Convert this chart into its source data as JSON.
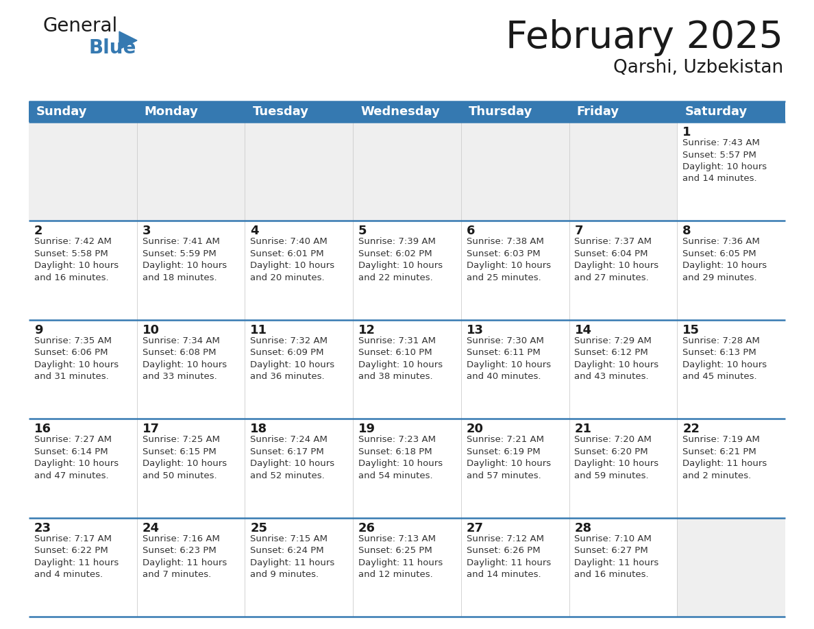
{
  "title": "February 2025",
  "subtitle": "Qarshi, Uzbekistan",
  "header_bg_color": "#3579B1",
  "header_text_color": "#FFFFFF",
  "empty_cell_bg": "#EFEFEF",
  "white_bg": "#FFFFFF",
  "border_color": "#3579B1",
  "text_color": "#1a1a1a",
  "info_color": "#333333",
  "day_names": [
    "Sunday",
    "Monday",
    "Tuesday",
    "Wednesday",
    "Thursday",
    "Friday",
    "Saturday"
  ],
  "title_fontsize": 40,
  "subtitle_fontsize": 19,
  "header_fontsize": 13,
  "day_num_fontsize": 13,
  "info_fontsize": 9.5,
  "logo_general_fontsize": 20,
  "logo_blue_fontsize": 20,
  "weeks": [
    [
      {
        "day": null,
        "info": null
      },
      {
        "day": null,
        "info": null
      },
      {
        "day": null,
        "info": null
      },
      {
        "day": null,
        "info": null
      },
      {
        "day": null,
        "info": null
      },
      {
        "day": null,
        "info": null
      },
      {
        "day": 1,
        "info": "Sunrise: 7:43 AM\nSunset: 5:57 PM\nDaylight: 10 hours\nand 14 minutes."
      }
    ],
    [
      {
        "day": 2,
        "info": "Sunrise: 7:42 AM\nSunset: 5:58 PM\nDaylight: 10 hours\nand 16 minutes."
      },
      {
        "day": 3,
        "info": "Sunrise: 7:41 AM\nSunset: 5:59 PM\nDaylight: 10 hours\nand 18 minutes."
      },
      {
        "day": 4,
        "info": "Sunrise: 7:40 AM\nSunset: 6:01 PM\nDaylight: 10 hours\nand 20 minutes."
      },
      {
        "day": 5,
        "info": "Sunrise: 7:39 AM\nSunset: 6:02 PM\nDaylight: 10 hours\nand 22 minutes."
      },
      {
        "day": 6,
        "info": "Sunrise: 7:38 AM\nSunset: 6:03 PM\nDaylight: 10 hours\nand 25 minutes."
      },
      {
        "day": 7,
        "info": "Sunrise: 7:37 AM\nSunset: 6:04 PM\nDaylight: 10 hours\nand 27 minutes."
      },
      {
        "day": 8,
        "info": "Sunrise: 7:36 AM\nSunset: 6:05 PM\nDaylight: 10 hours\nand 29 minutes."
      }
    ],
    [
      {
        "day": 9,
        "info": "Sunrise: 7:35 AM\nSunset: 6:06 PM\nDaylight: 10 hours\nand 31 minutes."
      },
      {
        "day": 10,
        "info": "Sunrise: 7:34 AM\nSunset: 6:08 PM\nDaylight: 10 hours\nand 33 minutes."
      },
      {
        "day": 11,
        "info": "Sunrise: 7:32 AM\nSunset: 6:09 PM\nDaylight: 10 hours\nand 36 minutes."
      },
      {
        "day": 12,
        "info": "Sunrise: 7:31 AM\nSunset: 6:10 PM\nDaylight: 10 hours\nand 38 minutes."
      },
      {
        "day": 13,
        "info": "Sunrise: 7:30 AM\nSunset: 6:11 PM\nDaylight: 10 hours\nand 40 minutes."
      },
      {
        "day": 14,
        "info": "Sunrise: 7:29 AM\nSunset: 6:12 PM\nDaylight: 10 hours\nand 43 minutes."
      },
      {
        "day": 15,
        "info": "Sunrise: 7:28 AM\nSunset: 6:13 PM\nDaylight: 10 hours\nand 45 minutes."
      }
    ],
    [
      {
        "day": 16,
        "info": "Sunrise: 7:27 AM\nSunset: 6:14 PM\nDaylight: 10 hours\nand 47 minutes."
      },
      {
        "day": 17,
        "info": "Sunrise: 7:25 AM\nSunset: 6:15 PM\nDaylight: 10 hours\nand 50 minutes."
      },
      {
        "day": 18,
        "info": "Sunrise: 7:24 AM\nSunset: 6:17 PM\nDaylight: 10 hours\nand 52 minutes."
      },
      {
        "day": 19,
        "info": "Sunrise: 7:23 AM\nSunset: 6:18 PM\nDaylight: 10 hours\nand 54 minutes."
      },
      {
        "day": 20,
        "info": "Sunrise: 7:21 AM\nSunset: 6:19 PM\nDaylight: 10 hours\nand 57 minutes."
      },
      {
        "day": 21,
        "info": "Sunrise: 7:20 AM\nSunset: 6:20 PM\nDaylight: 10 hours\nand 59 minutes."
      },
      {
        "day": 22,
        "info": "Sunrise: 7:19 AM\nSunset: 6:21 PM\nDaylight: 11 hours\nand 2 minutes."
      }
    ],
    [
      {
        "day": 23,
        "info": "Sunrise: 7:17 AM\nSunset: 6:22 PM\nDaylight: 11 hours\nand 4 minutes."
      },
      {
        "day": 24,
        "info": "Sunrise: 7:16 AM\nSunset: 6:23 PM\nDaylight: 11 hours\nand 7 minutes."
      },
      {
        "day": 25,
        "info": "Sunrise: 7:15 AM\nSunset: 6:24 PM\nDaylight: 11 hours\nand 9 minutes."
      },
      {
        "day": 26,
        "info": "Sunrise: 7:13 AM\nSunset: 6:25 PM\nDaylight: 11 hours\nand 12 minutes."
      },
      {
        "day": 27,
        "info": "Sunrise: 7:12 AM\nSunset: 6:26 PM\nDaylight: 11 hours\nand 14 minutes."
      },
      {
        "day": 28,
        "info": "Sunrise: 7:10 AM\nSunset: 6:27 PM\nDaylight: 11 hours\nand 16 minutes."
      },
      {
        "day": null,
        "info": null
      }
    ]
  ]
}
